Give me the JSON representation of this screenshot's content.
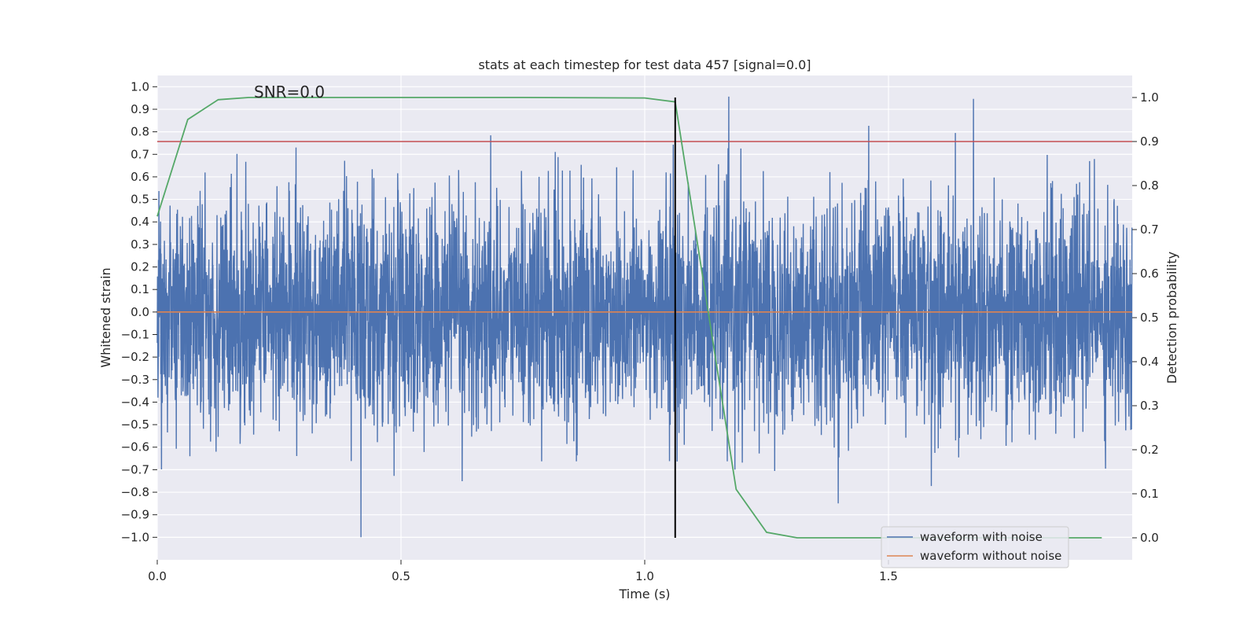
{
  "chart_data": {
    "type": "line",
    "title": "stats at each timestep for test data 457 [signal=0.0]",
    "xlabel": "Time (s)",
    "ylabel": "Whitened strain",
    "y2label": "Detection probability",
    "xlim": [
      0.0,
      2.0
    ],
    "ylim": [
      -1.1,
      1.05
    ],
    "y2lim": [
      -0.05,
      1.05
    ],
    "xticks": [
      "0.0",
      "0.5",
      "1.0",
      "1.5"
    ],
    "yticks": [
      "1.0",
      "0.9",
      "0.8",
      "0.7",
      "0.6",
      "0.5",
      "0.4",
      "0.3",
      "0.2",
      "0.1",
      "0.0",
      "−0.1",
      "−0.2",
      "−0.3",
      "−0.4",
      "−0.5",
      "−0.6",
      "−0.7",
      "−0.8",
      "−0.9",
      "−1.0"
    ],
    "y2ticks": [
      "1.0",
      "0.9",
      "0.8",
      "0.7",
      "0.6",
      "0.5",
      "0.4",
      "0.3",
      "0.2",
      "0.1",
      "0.0"
    ],
    "annotation": "SNR=0.0",
    "grid": true,
    "legend_position": "lower-right",
    "colors": {
      "noise": "#4c72b0",
      "clean": "#dd8452",
      "prob": "#55a868",
      "threshold": "#c44e52",
      "marker": "#000000",
      "plot_bg": "#eaeaf2",
      "grid": "#ffffff"
    },
    "series": [
      {
        "name": "waveform with noise",
        "axis": "left",
        "fs": 2048,
        "duration": 2.0,
        "amplitude_sd": 0.25,
        "range": [
          -1.0,
          0.96
        ]
      },
      {
        "name": "waveform without noise",
        "axis": "left",
        "x": [
          0.0,
          2.0
        ],
        "y": [
          0.0,
          0.0
        ]
      },
      {
        "name": "detection probability",
        "axis": "right",
        "x": [
          0.0,
          0.0625,
          0.125,
          0.1875,
          0.25,
          0.5,
          0.75,
          1.0,
          1.0625,
          1.125,
          1.1875,
          1.25,
          1.3125,
          1.375,
          1.9375
        ],
        "y": [
          0.73,
          0.95,
          0.995,
          1.0,
          1.0,
          1.0,
          1.0,
          0.999,
          0.99,
          0.55,
          0.11,
          0.0125,
          0.0,
          0.0,
          0.0
        ]
      }
    ],
    "threshold_y2": 0.9,
    "marker_x": 1.0625,
    "marker_y2": [
      0.0,
      1.0
    ]
  }
}
